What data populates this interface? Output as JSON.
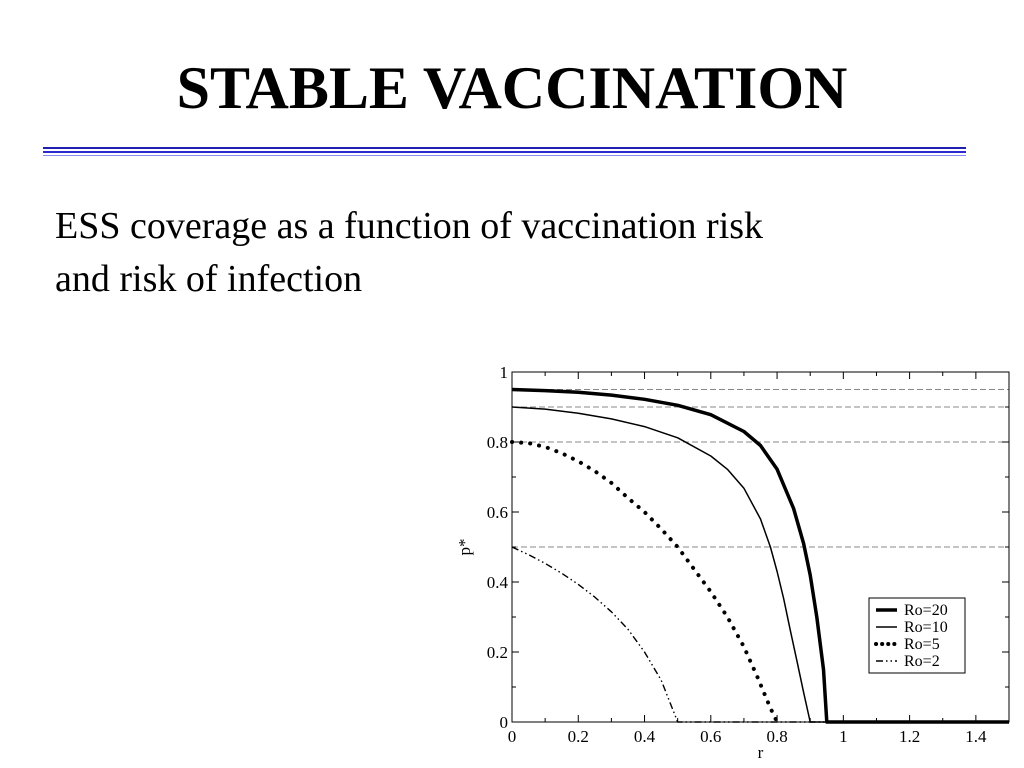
{
  "slide": {
    "title": "STABLE VACCINATION",
    "subtitle_line1": "ESS coverage as a function of vaccination risk",
    "subtitle_line2": "and risk of infection"
  },
  "colors": {
    "rule": "#1f1fb0",
    "series": "#000000",
    "reference_lines": "#888888"
  },
  "chart_data": {
    "type": "line",
    "xlabel": "r",
    "ylabel": "p*",
    "xlim": [
      0,
      1.5
    ],
    "ylim": [
      0,
      1
    ],
    "xticks": [
      0,
      0.2,
      0.4,
      0.6,
      0.8,
      1,
      1.2,
      1.4
    ],
    "xtick_labels": [
      "0",
      "0.2",
      "0.4",
      "0.6",
      "0.8",
      "1",
      "1.2",
      "1.4"
    ],
    "yticks": [
      0,
      0.2,
      0.4,
      0.6,
      0.8,
      1
    ],
    "ytick_labels": [
      "0",
      "0.2",
      "0.4",
      "0.6",
      "0.8",
      "1"
    ],
    "reference_lines_y": [
      0.95,
      0.9,
      0.8,
      0.5
    ],
    "legend_position": "bottom-right",
    "grid": false,
    "series": [
      {
        "name": "Ro=20",
        "style": "thick-solid",
        "x": [
          0,
          0.1,
          0.2,
          0.3,
          0.4,
          0.5,
          0.6,
          0.7,
          0.75,
          0.8,
          0.85,
          0.88,
          0.9,
          0.92,
          0.94,
          0.95,
          1.0,
          1.5
        ],
        "y": [
          0.95,
          0.947,
          0.942,
          0.934,
          0.922,
          0.905,
          0.878,
          0.83,
          0.79,
          0.722,
          0.61,
          0.51,
          0.42,
          0.3,
          0.15,
          0,
          0,
          0
        ]
      },
      {
        "name": "Ro=10",
        "style": "thin-solid",
        "x": [
          0,
          0.1,
          0.2,
          0.3,
          0.4,
          0.5,
          0.6,
          0.65,
          0.7,
          0.75,
          0.78,
          0.8,
          0.82,
          0.84,
          0.86,
          0.88,
          0.9,
          1.0,
          1.5
        ],
        "y": [
          0.9,
          0.894,
          0.882,
          0.866,
          0.844,
          0.812,
          0.76,
          0.722,
          0.668,
          0.58,
          0.5,
          0.43,
          0.352,
          0.262,
          0.175,
          0.085,
          0,
          0,
          0
        ]
      },
      {
        "name": "Ro=5",
        "style": "dotted",
        "x": [
          0,
          0.05,
          0.1,
          0.15,
          0.2,
          0.25,
          0.3,
          0.35,
          0.4,
          0.45,
          0.5,
          0.55,
          0.6,
          0.65,
          0.7,
          0.72,
          0.74,
          0.76,
          0.78,
          0.8
        ],
        "y": [
          0.8,
          0.797,
          0.786,
          0.768,
          0.745,
          0.717,
          0.683,
          0.64,
          0.6,
          0.552,
          0.5,
          0.436,
          0.372,
          0.3,
          0.215,
          0.172,
          0.13,
          0.085,
          0.04,
          0
        ]
      },
      {
        "name": "Ro=2",
        "style": "dash-dot",
        "x": [
          0,
          0.05,
          0.1,
          0.15,
          0.2,
          0.25,
          0.3,
          0.35,
          0.4,
          0.45,
          0.5,
          1.5
        ],
        "y": [
          0.5,
          0.478,
          0.453,
          0.425,
          0.393,
          0.357,
          0.315,
          0.265,
          0.2,
          0.12,
          0,
          0
        ]
      }
    ]
  }
}
